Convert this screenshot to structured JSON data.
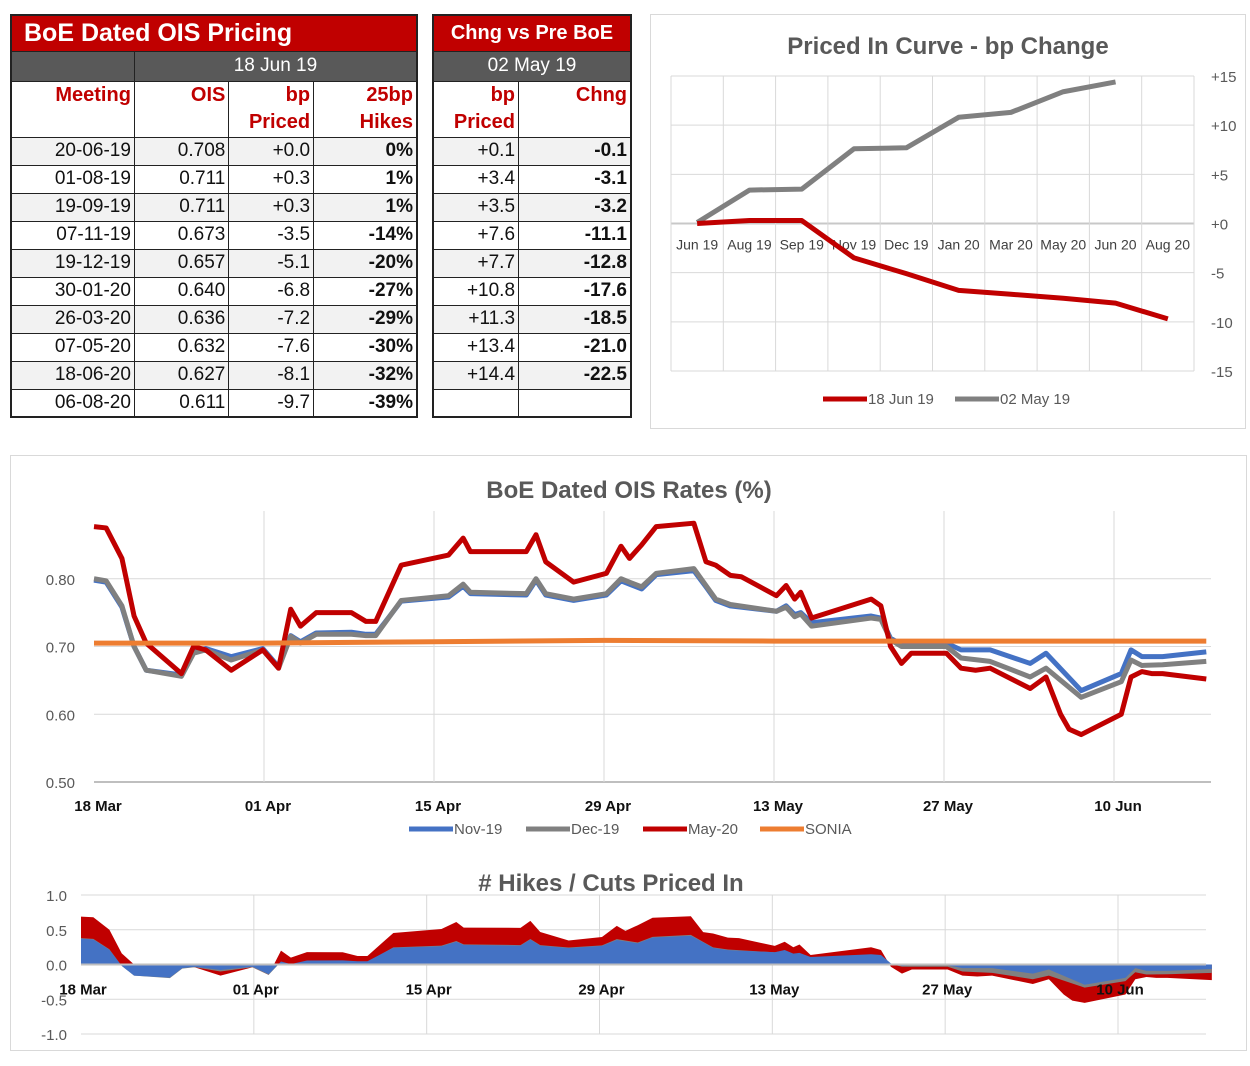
{
  "left_table": {
    "title": "BoE Dated OIS Pricing",
    "date": "18 Jun 19",
    "headers": [
      [
        "Meeting",
        ""
      ],
      [
        "OIS",
        ""
      ],
      [
        "bp",
        "Priced"
      ],
      [
        "25bp",
        "Hikes"
      ]
    ],
    "rows": [
      [
        "20-06-19",
        "0.708",
        "+0.0",
        "0%"
      ],
      [
        "01-08-19",
        "0.711",
        "+0.3",
        "1%"
      ],
      [
        "19-09-19",
        "0.711",
        "+0.3",
        "1%"
      ],
      [
        "07-11-19",
        "0.673",
        "-3.5",
        "-14%"
      ],
      [
        "19-12-19",
        "0.657",
        "-5.1",
        "-20%"
      ],
      [
        "30-01-20",
        "0.640",
        "-6.8",
        "-27%"
      ],
      [
        "26-03-20",
        "0.636",
        "-7.2",
        "-29%"
      ],
      [
        "07-05-20",
        "0.632",
        "-7.6",
        "-30%"
      ],
      [
        "18-06-20",
        "0.627",
        "-8.1",
        "-32%"
      ],
      [
        "06-08-20",
        "0.611",
        "-9.7",
        "-39%"
      ]
    ]
  },
  "right_table": {
    "title": "Chng vs Pre BoE",
    "date": "02 May 19",
    "headers": [
      [
        "bp",
        "Priced"
      ],
      [
        "Chng",
        ""
      ]
    ],
    "rows": [
      [
        "+0.1",
        "-0.1"
      ],
      [
        "+3.4",
        "-3.1"
      ],
      [
        "+3.5",
        "-3.2"
      ],
      [
        "+7.6",
        "-11.1"
      ],
      [
        "+7.7",
        "-12.8"
      ],
      [
        "+10.8",
        "-17.6"
      ],
      [
        "+11.3",
        "-18.5"
      ],
      [
        "+13.4",
        "-21.0"
      ],
      [
        "+14.4",
        "-22.5"
      ],
      [
        "",
        ""
      ]
    ]
  },
  "chart_data": [
    {
      "type": "line",
      "title": "Priced In Curve - bp Change",
      "categories": [
        "Jun 19",
        "Aug 19",
        "Sep 19",
        "Nov 19",
        "Dec 19",
        "Jan 20",
        "Mar 20",
        "May 20",
        "Jun 20",
        "Aug 20"
      ],
      "ylim": [
        -15,
        15
      ],
      "yticks": [
        "+15",
        "+10",
        "+5",
        "+0",
        "-5",
        "-10",
        "-15"
      ],
      "ytick_values": [
        15,
        10,
        5,
        0,
        -5,
        -10,
        -15
      ],
      "legend": "bottom",
      "series": [
        {
          "name": "18 Jun 19",
          "color": "#c00000",
          "values": [
            0.0,
            0.3,
            0.3,
            -3.5,
            -5.1,
            -6.8,
            -7.2,
            -7.6,
            -8.1,
            -9.7
          ]
        },
        {
          "name": "02 May 19",
          "color": "#808080",
          "values": [
            0.1,
            3.4,
            3.5,
            7.6,
            7.7,
            10.8,
            11.3,
            13.4,
            14.4,
            null
          ]
        }
      ]
    },
    {
      "type": "line",
      "title": "BoE Dated OIS Rates (%)",
      "xlabel_note": "",
      "x_unit": "days since 18 Mar",
      "xticks": [
        {
          "label": "18 Mar",
          "day": 0
        },
        {
          "label": "01 Apr",
          "day": 14
        },
        {
          "label": "15 Apr",
          "day": 28
        },
        {
          "label": "29 Apr",
          "day": 42
        },
        {
          "label": "13 May",
          "day": 56
        },
        {
          "label": "27 May",
          "day": 70
        },
        {
          "label": "10 Jun",
          "day": 84
        }
      ],
      "xlim": [
        0,
        92
      ],
      "ylim": [
        0.5,
        0.9
      ],
      "yticks": [
        "0.50",
        "0.60",
        "0.70",
        "0.80"
      ],
      "ytick_values": [
        0.5,
        0.6,
        0.7,
        0.8
      ],
      "legend": "bottom",
      "series": [
        {
          "name": "Nov-19",
          "color": "#4472c4",
          "points": [
            [
              0,
              0.798
            ],
            [
              1,
              0.795
            ],
            [
              2.3,
              0.758
            ],
            [
              3.3,
              0.7
            ],
            [
              4.3,
              0.665
            ],
            [
              7.2,
              0.658
            ],
            [
              8.2,
              0.692
            ],
            [
              9.2,
              0.697
            ],
            [
              11.3,
              0.685
            ],
            [
              13.9,
              0.697
            ],
            [
              15.2,
              0.67
            ],
            [
              16.2,
              0.716
            ],
            [
              17,
              0.707
            ],
            [
              18.3,
              0.72
            ],
            [
              21.2,
              0.721
            ],
            [
              22.4,
              0.718
            ],
            [
              23.2,
              0.718
            ],
            [
              25.3,
              0.767
            ],
            [
              29.2,
              0.773
            ],
            [
              30.4,
              0.789
            ],
            [
              31,
              0.778
            ],
            [
              35.6,
              0.776
            ],
            [
              36.4,
              0.798
            ],
            [
              37.2,
              0.776
            ],
            [
              39.5,
              0.768
            ],
            [
              42.2,
              0.776
            ],
            [
              43.4,
              0.797
            ],
            [
              44.1,
              0.792
            ],
            [
              45.1,
              0.785
            ],
            [
              46.3,
              0.806
            ],
            [
              49.4,
              0.812
            ],
            [
              50.4,
              0.788
            ],
            [
              51.2,
              0.768
            ],
            [
              52.4,
              0.76
            ],
            [
              56.2,
              0.752
            ],
            [
              57,
              0.76
            ],
            [
              57.7,
              0.747
            ],
            [
              58.2,
              0.75
            ],
            [
              59.1,
              0.735
            ],
            [
              64,
              0.745
            ],
            [
              64.8,
              0.742
            ],
            [
              65.6,
              0.712
            ],
            [
              66.5,
              0.703
            ],
            [
              67.3,
              0.705
            ],
            [
              70.2,
              0.705
            ],
            [
              71.4,
              0.695
            ],
            [
              73.8,
              0.695
            ],
            [
              77.1,
              0.675
            ],
            [
              78.4,
              0.69
            ],
            [
              81.3,
              0.635
            ],
            [
              84.6,
              0.66
            ],
            [
              85.4,
              0.695
            ],
            [
              86.3,
              0.685
            ],
            [
              88,
              0.685
            ],
            [
              91.6,
              0.692
            ]
          ]
        },
        {
          "name": "Dec-19",
          "color": "#808080",
          "points": [
            [
              0,
              0.8
            ],
            [
              1,
              0.797
            ],
            [
              2.3,
              0.76
            ],
            [
              3.3,
              0.7
            ],
            [
              4.3,
              0.665
            ],
            [
              7.2,
              0.656
            ],
            [
              8.2,
              0.69
            ],
            [
              9.2,
              0.695
            ],
            [
              11.3,
              0.68
            ],
            [
              13.9,
              0.695
            ],
            [
              15.2,
              0.668
            ],
            [
              16.2,
              0.715
            ],
            [
              17,
              0.705
            ],
            [
              18.3,
              0.718
            ],
            [
              21.2,
              0.718
            ],
            [
              22.4,
              0.716
            ],
            [
              23.2,
              0.716
            ],
            [
              25.3,
              0.768
            ],
            [
              29.2,
              0.775
            ],
            [
              30.4,
              0.792
            ],
            [
              31,
              0.78
            ],
            [
              35.6,
              0.778
            ],
            [
              36.4,
              0.8
            ],
            [
              37.2,
              0.778
            ],
            [
              39.5,
              0.77
            ],
            [
              42.2,
              0.778
            ],
            [
              43.4,
              0.8
            ],
            [
              44.1,
              0.795
            ],
            [
              45.1,
              0.788
            ],
            [
              46.3,
              0.808
            ],
            [
              49.4,
              0.815
            ],
            [
              50.4,
              0.79
            ],
            [
              51.2,
              0.77
            ],
            [
              52.4,
              0.762
            ],
            [
              56.2,
              0.752
            ],
            [
              57,
              0.758
            ],
            [
              57.7,
              0.744
            ],
            [
              58.2,
              0.748
            ],
            [
              59.1,
              0.73
            ],
            [
              64,
              0.742
            ],
            [
              64.8,
              0.74
            ],
            [
              65.6,
              0.71
            ],
            [
              66.5,
              0.7
            ],
            [
              67.3,
              0.7
            ],
            [
              70.2,
              0.7
            ],
            [
              71.4,
              0.683
            ],
            [
              73.8,
              0.678
            ],
            [
              77.1,
              0.655
            ],
            [
              78.4,
              0.668
            ],
            [
              81.3,
              0.625
            ],
            [
              84.6,
              0.648
            ],
            [
              85.4,
              0.68
            ],
            [
              86.3,
              0.672
            ],
            [
              88,
              0.673
            ],
            [
              91.6,
              0.678
            ]
          ]
        },
        {
          "name": "May-20",
          "color": "#c00000",
          "points": [
            [
              0,
              0.877
            ],
            [
              1,
              0.875
            ],
            [
              2.3,
              0.83
            ],
            [
              3.3,
              0.745
            ],
            [
              4.3,
              0.705
            ],
            [
              7.2,
              0.66
            ],
            [
              8.2,
              0.7
            ],
            [
              9.2,
              0.695
            ],
            [
              11.3,
              0.665
            ],
            [
              13.9,
              0.695
            ],
            [
              15.2,
              0.668
            ],
            [
              16.2,
              0.755
            ],
            [
              17,
              0.73
            ],
            [
              18.3,
              0.75
            ],
            [
              21.2,
              0.75
            ],
            [
              22.4,
              0.737
            ],
            [
              23.2,
              0.737
            ],
            [
              25.3,
              0.82
            ],
            [
              29.2,
              0.835
            ],
            [
              30.4,
              0.86
            ],
            [
              31,
              0.84
            ],
            [
              35.6,
              0.84
            ],
            [
              36.4,
              0.865
            ],
            [
              37.2,
              0.825
            ],
            [
              39.5,
              0.795
            ],
            [
              42.2,
              0.808
            ],
            [
              43.4,
              0.848
            ],
            [
              44.1,
              0.83
            ],
            [
              45.1,
              0.85
            ],
            [
              46.3,
              0.877
            ],
            [
              49.4,
              0.882
            ],
            [
              50.4,
              0.825
            ],
            [
              51.2,
              0.82
            ],
            [
              52.4,
              0.805
            ],
            [
              53.3,
              0.803
            ],
            [
              56.2,
              0.775
            ],
            [
              57,
              0.79
            ],
            [
              57.7,
              0.77
            ],
            [
              58.2,
              0.78
            ],
            [
              59.1,
              0.742
            ],
            [
              64,
              0.77
            ],
            [
              64.8,
              0.76
            ],
            [
              65.6,
              0.7
            ],
            [
              66.5,
              0.675
            ],
            [
              67.3,
              0.69
            ],
            [
              70.2,
              0.69
            ],
            [
              71.4,
              0.668
            ],
            [
              72.6,
              0.665
            ],
            [
              73.8,
              0.668
            ],
            [
              77.1,
              0.638
            ],
            [
              78.4,
              0.655
            ],
            [
              79.6,
              0.6
            ],
            [
              80.3,
              0.578
            ],
            [
              81.3,
              0.57
            ],
            [
              84.6,
              0.6
            ],
            [
              85.4,
              0.655
            ],
            [
              86.3,
              0.663
            ],
            [
              87.1,
              0.66
            ],
            [
              88,
              0.66
            ],
            [
              91.6,
              0.652
            ]
          ]
        },
        {
          "name": "SONIA",
          "color": "#ed7d31",
          "points": [
            [
              0,
              0.705
            ],
            [
              14,
              0.705
            ],
            [
              28,
              0.707
            ],
            [
              42,
              0.709
            ],
            [
              56,
              0.708
            ],
            [
              70,
              0.708
            ],
            [
              91.6,
              0.708
            ]
          ]
        }
      ]
    },
    {
      "type": "area",
      "title": "# Hikes / Cuts Priced In",
      "xticks": [
        {
          "label": "18 Mar",
          "day": 0
        },
        {
          "label": "01 Apr",
          "day": 14
        },
        {
          "label": "15 Apr",
          "day": 28
        },
        {
          "label": "29 Apr",
          "day": 42
        },
        {
          "label": "13 May",
          "day": 56
        },
        {
          "label": "27 May",
          "day": 70
        },
        {
          "label": "10 Jun",
          "day": 84
        }
      ],
      "xlim": [
        0,
        92
      ],
      "ylim": [
        -1,
        1
      ],
      "yticks": [
        "1.0",
        "0.5",
        "0.0",
        "-0.5",
        "-1.0"
      ],
      "ytick_values": [
        1,
        0.5,
        0,
        -0.5,
        -1
      ],
      "derived_from": "(rate - SONIA) / 0.25",
      "series": [
        {
          "name": "May-20",
          "color": "#c00000"
        },
        {
          "name": "Dec-19",
          "color": "#808080"
        },
        {
          "name": "Nov-19",
          "color": "#4472c4"
        }
      ]
    }
  ]
}
